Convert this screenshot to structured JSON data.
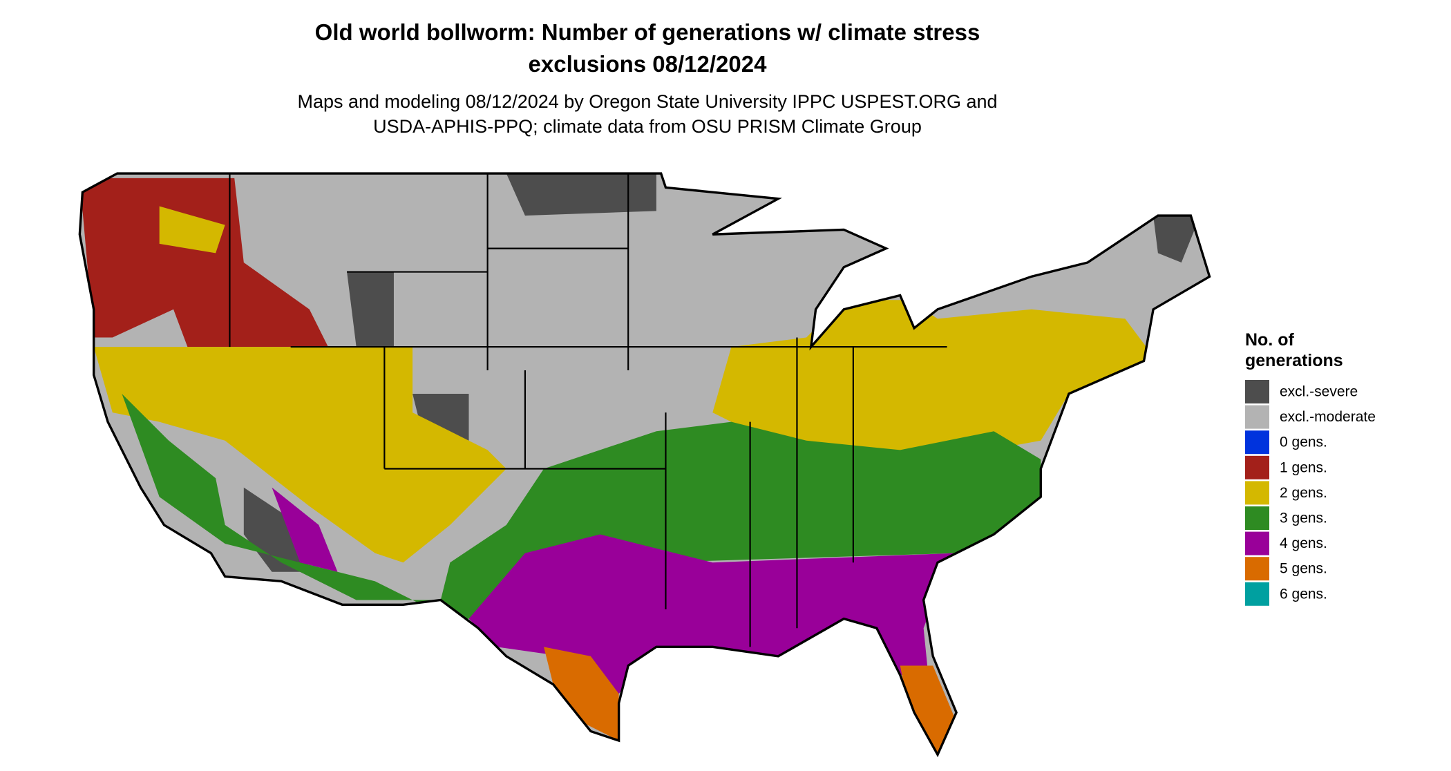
{
  "header": {
    "title_lines": [
      "Old world bollworm: Number of generations w/ climate stress",
      "exclusions 08/12/2024"
    ],
    "subtitle_lines": [
      "Maps and modeling 08/12/2024 by Oregon State University IPPC USPEST.ORG and",
      "USDA-APHIS-PPQ; climate data from OSU PRISM Climate Group"
    ]
  },
  "legend": {
    "title_lines": [
      "No. of",
      "generations"
    ],
    "items": [
      {
        "label": "excl.-severe",
        "color": "#4d4d4d"
      },
      {
        "label": "excl.-moderate",
        "color": "#b3b3b3"
      },
      {
        "label": "0 gens.",
        "color": "#0033dd"
      },
      {
        "label": "1 gens.",
        "color": "#a3201a"
      },
      {
        "label": "2 gens.",
        "color": "#d4b800"
      },
      {
        "label": "3 gens.",
        "color": "#2e8b22"
      },
      {
        "label": "4 gens.",
        "color": "#990099"
      },
      {
        "label": "5 gens.",
        "color": "#d96b00"
      },
      {
        "label": "6 gens.",
        "color": "#00a0a0"
      }
    ]
  }
}
